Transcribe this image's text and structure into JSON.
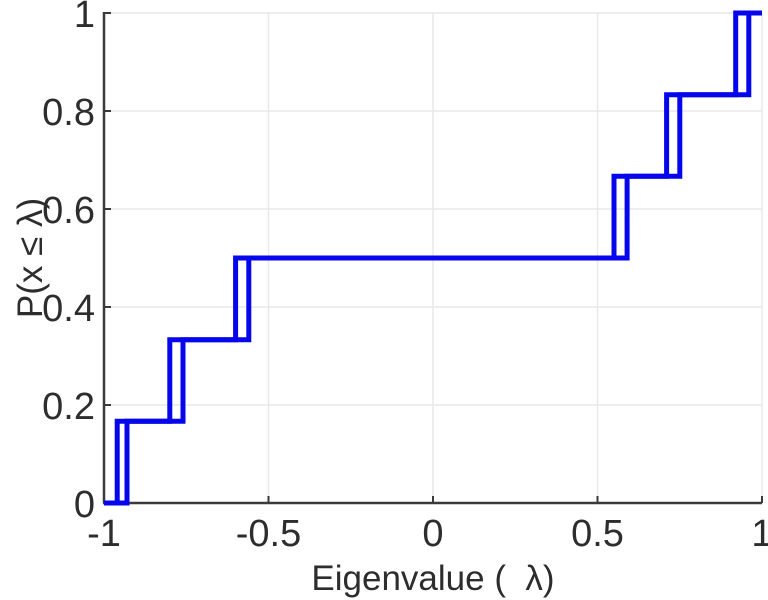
{
  "chart_data": {
    "type": "line",
    "subtype": "ecdf-step",
    "title": "",
    "xlabel": "Eigenvalue (  λ)",
    "ylabel": "P(x ≤ λ)",
    "xlim": [
      -1,
      1
    ],
    "ylim": [
      0,
      1
    ],
    "xticks": [
      -1,
      -0.5,
      0,
      0.5,
      1
    ],
    "xtick_labels": [
      "-1",
      "-0.5",
      "0",
      "0.5",
      "1"
    ],
    "yticks": [
      0,
      0.2,
      0.4,
      0.6,
      0.8,
      1
    ],
    "ytick_labels": [
      "0",
      "0.2",
      "0.4",
      "0.6",
      "0.8",
      "1"
    ],
    "grid": true,
    "legend_position": "none",
    "line_color": "#0606ec",
    "series": [
      {
        "name": "ecdf-step-curve-left",
        "eigenvalues": [
          -0.96,
          -0.8,
          -0.6,
          0.55,
          0.71,
          0.92
        ],
        "levels": [
          0.1667,
          0.3333,
          0.5,
          0.6667,
          0.8333,
          1
        ]
      },
      {
        "name": "ecdf-step-curve-right",
        "eigenvalues": [
          -0.93,
          -0.76,
          -0.56,
          0.59,
          0.75,
          0.96
        ],
        "levels": [
          0.1667,
          0.3333,
          0.5,
          0.6667,
          0.8333,
          1
        ]
      }
    ]
  },
  "colors": {
    "line": "#0606ec",
    "axis": "#3a3a3a",
    "grid": "#e9e9e9",
    "text": "#2d2d2d",
    "background": "#ffffff"
  }
}
